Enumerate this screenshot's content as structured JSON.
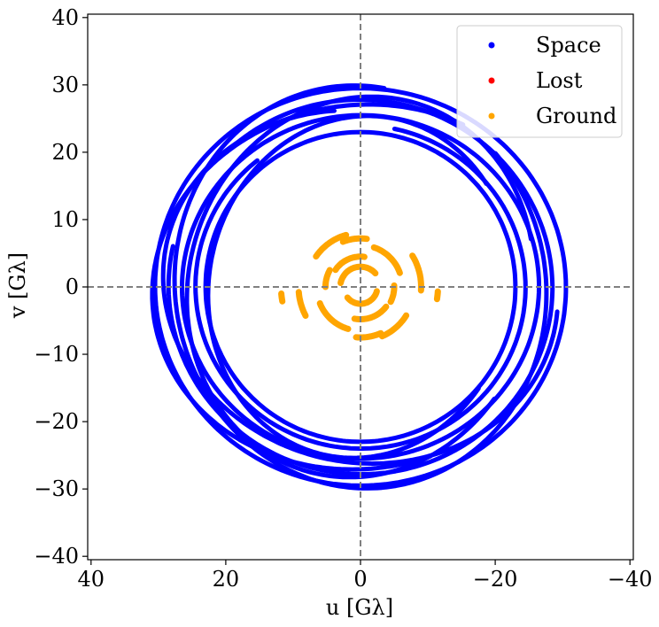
{
  "chart_data": {
    "type": "scatter",
    "title": "",
    "xlabel": "u [Gλ]",
    "ylabel": "v [Gλ]",
    "xlim": [
      40.5,
      -40.5
    ],
    "ylim": [
      -40.5,
      40.5
    ],
    "x_ticks": [
      40,
      20,
      0,
      -20,
      -40
    ],
    "y_ticks": [
      40,
      30,
      20,
      10,
      0,
      -10,
      -20,
      -30,
      -40
    ],
    "x_tick_labels": [
      "40",
      "20",
      "0",
      "−20",
      "−40"
    ],
    "y_tick_labels": [
      "40",
      "30",
      "20",
      "10",
      "0",
      "−10",
      "−20",
      "−30",
      "−40"
    ],
    "reference_lines": {
      "x": 0,
      "y": 0,
      "style": "dashed",
      "color": "#808080"
    },
    "legend": {
      "position": "top-right"
    },
    "series": [
      {
        "name": "Space",
        "color": "#0000ff",
        "description_shape": "set of near-elliptical tracks",
        "tracks": [
          {
            "a": 30.5,
            "b": 29.5,
            "phase": 0.0,
            "tilt": 0.05,
            "start": 0.0,
            "end": 6.283
          },
          {
            "a": 28.5,
            "b": 27.8,
            "phase": 0.4,
            "tilt": 0.1,
            "start": 0.3,
            "end": 6.0
          },
          {
            "a": 26.5,
            "b": 25.5,
            "phase": 0.8,
            "tilt": -0.05,
            "start": 0.0,
            "end": 6.283
          },
          {
            "a": 24.5,
            "b": 24.0,
            "phase": 1.2,
            "tilt": 0.08,
            "start": 0.5,
            "end": 5.9
          },
          {
            "a": 23.0,
            "b": 23.0,
            "phase": 1.6,
            "tilt": 0.0,
            "start": 0.0,
            "end": 6.283
          },
          {
            "a": 29.5,
            "b": 26.0,
            "phase": 2.0,
            "tilt": 0.25,
            "start": 1.0,
            "end": 5.5
          },
          {
            "a": 27.5,
            "b": 30.0,
            "phase": 2.4,
            "tilt": -0.2,
            "start": 0.2,
            "end": 5.8
          },
          {
            "a": 25.5,
            "b": 28.5,
            "phase": 2.8,
            "tilt": 0.3,
            "start": 0.7,
            "end": 6.1
          },
          {
            "a": 31.0,
            "b": 27.0,
            "phase": 3.2,
            "tilt": -0.15,
            "start": 1.3,
            "end": 5.3
          },
          {
            "a": 22.5,
            "b": 25.5,
            "phase": 3.6,
            "tilt": 0.2,
            "start": 0.0,
            "end": 5.0
          }
        ]
      },
      {
        "name": "Lost",
        "color": "#ff0000",
        "tracks": []
      },
      {
        "name": "Ground",
        "color": "#ffa500",
        "arcs": [
          {
            "cx": 0,
            "cy": 0,
            "r": 3.0,
            "start": 0.2,
            "end": 2.4
          },
          {
            "cx": 0,
            "cy": 0,
            "r": 2.5,
            "start": 3.4,
            "end": 5.6
          },
          {
            "cx": 0,
            "cy": 0,
            "r": 4.5,
            "start": 0.6,
            "end": 1.7
          },
          {
            "cx": 0,
            "cy": 0,
            "r": 4.8,
            "start": 3.8,
            "end": 4.9
          },
          {
            "cx": 0,
            "cy": 0,
            "r": 6.2,
            "start": 1.9,
            "end": 2.8
          },
          {
            "cx": 0,
            "cy": 0,
            "r": 6.5,
            "start": 5.0,
            "end": 5.9
          },
          {
            "cx": 0,
            "cy": 0,
            "r": 8.0,
            "start": 0.6,
            "end": 1.3
          },
          {
            "cx": 0,
            "cy": 0,
            "r": 8.0,
            "start": 3.7,
            "end": 4.3
          },
          {
            "cx": 0,
            "cy": 0,
            "r": 9.0,
            "start": 2.6,
            "end": 3.2
          },
          {
            "cx": 0,
            "cy": 0,
            "r": 9.2,
            "start": 5.8,
            "end": 6.2
          },
          {
            "cx": 0,
            "cy": 0,
            "r": 7.2,
            "start": 1.2,
            "end": 1.7
          },
          {
            "cx": 0,
            "cy": 0,
            "r": 7.5,
            "start": 4.3,
            "end": 4.8
          },
          {
            "cx": 0,
            "cy": 0,
            "r": 5.2,
            "start": 0.0,
            "end": 0.5
          },
          {
            "cx": 0,
            "cy": 0,
            "r": 5.0,
            "start": 3.1,
            "end": 3.6
          },
          {
            "cx": 0,
            "cy": 0,
            "r": 11.5,
            "start": 3.2,
            "end": 3.3
          },
          {
            "cx": 0,
            "cy": 0,
            "r": 11.8,
            "start": 6.1,
            "end": 6.2
          }
        ]
      }
    ]
  }
}
